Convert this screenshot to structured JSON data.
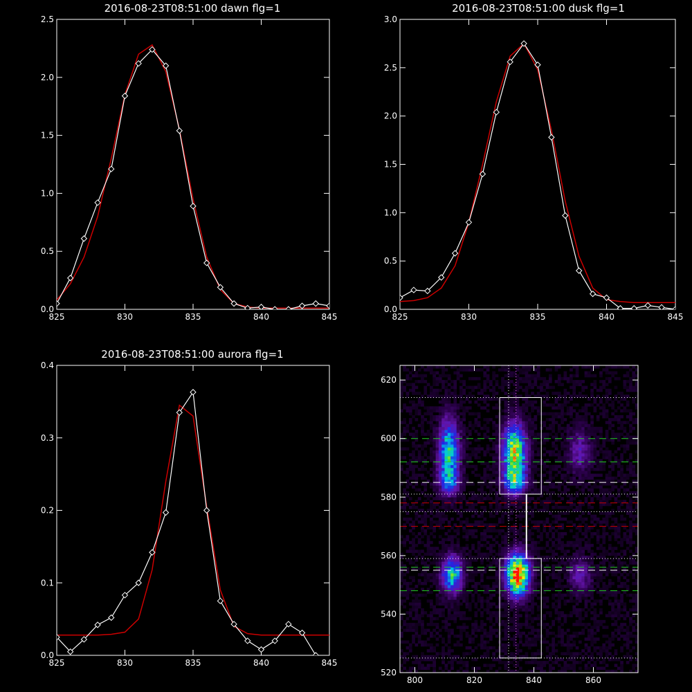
{
  "chart_data": [
    {
      "type": "line",
      "title": "2016-08-23T08:51:00 dawn flg=1",
      "xlim": [
        825,
        845
      ],
      "ylim": [
        0,
        2.5
      ],
      "xticks": [
        825,
        830,
        835,
        840,
        845
      ],
      "yticks": [
        0.0,
        0.5,
        1.0,
        1.5,
        2.0,
        2.5
      ],
      "ytick_labels": [
        "0.0",
        "0.5",
        "1.0",
        "1.5",
        "2.0",
        "2.5"
      ],
      "series": [
        {
          "color": "#ffffff",
          "markers": true,
          "x": [
            825,
            826,
            827,
            828,
            829,
            830,
            831,
            832,
            833,
            834,
            835,
            836,
            837,
            838,
            839,
            840,
            841,
            842,
            843,
            844,
            845
          ],
          "y": [
            0.05,
            0.27,
            0.61,
            0.92,
            1.21,
            1.84,
            2.12,
            2.24,
            2.1,
            1.54,
            0.89,
            0.4,
            0.19,
            0.05,
            0.01,
            0.02,
            0.0,
            0.0,
            0.03,
            0.05,
            0.03
          ]
        },
        {
          "color": "#cc0000",
          "markers": false,
          "x": [
            825,
            826,
            827,
            828,
            829,
            830,
            831,
            832,
            833,
            834,
            835,
            836,
            837,
            838,
            839,
            840,
            841,
            842,
            843,
            844,
            845
          ],
          "y": [
            0.08,
            0.22,
            0.45,
            0.8,
            1.3,
            1.85,
            2.2,
            2.28,
            2.05,
            1.55,
            0.95,
            0.45,
            0.17,
            0.05,
            0.02,
            0.01,
            0.01,
            0.01,
            0.01,
            0.01,
            0.01
          ]
        }
      ]
    },
    {
      "type": "line",
      "title": "2016-08-23T08:51:00 dusk flg=1",
      "xlim": [
        825,
        845
      ],
      "ylim": [
        0,
        3.0
      ],
      "xticks": [
        825,
        830,
        835,
        840,
        845
      ],
      "yticks": [
        0.0,
        0.5,
        1.0,
        1.5,
        2.0,
        2.5,
        3.0
      ],
      "ytick_labels": [
        "0.0",
        "0.5",
        "1.0",
        "1.5",
        "2.0",
        "2.5",
        "3.0"
      ],
      "series": [
        {
          "color": "#ffffff",
          "markers": true,
          "x": [
            825,
            826,
            827,
            828,
            829,
            830,
            831,
            832,
            833,
            834,
            835,
            836,
            837,
            838,
            839,
            840,
            841,
            842,
            843,
            844,
            845
          ],
          "y": [
            0.12,
            0.2,
            0.19,
            0.33,
            0.58,
            0.9,
            1.4,
            2.04,
            2.56,
            2.75,
            2.53,
            1.78,
            0.97,
            0.4,
            0.16,
            0.12,
            0.01,
            0.01,
            0.04,
            0.02,
            0.0
          ]
        },
        {
          "color": "#cc0000",
          "markers": false,
          "x": [
            825,
            826,
            827,
            828,
            829,
            830,
            831,
            832,
            833,
            834,
            835,
            836,
            837,
            838,
            839,
            840,
            841,
            842,
            843,
            844,
            845
          ],
          "y": [
            0.08,
            0.09,
            0.12,
            0.22,
            0.45,
            0.9,
            1.5,
            2.15,
            2.62,
            2.75,
            2.48,
            1.85,
            1.12,
            0.55,
            0.22,
            0.1,
            0.08,
            0.07,
            0.07,
            0.07,
            0.07
          ]
        }
      ]
    },
    {
      "type": "line",
      "title": "2016-08-23T08:51:00 aurora flg=1",
      "xlim": [
        825,
        845
      ],
      "ylim": [
        0,
        0.4
      ],
      "xticks": [
        825,
        830,
        835,
        840,
        845
      ],
      "yticks": [
        0.0,
        0.1,
        0.2,
        0.3,
        0.4
      ],
      "ytick_labels": [
        "0.0",
        "0.1",
        "0.2",
        "0.3",
        "0.4"
      ],
      "series": [
        {
          "color": "#ffffff",
          "markers": true,
          "x": [
            825,
            826,
            827,
            828,
            829,
            830,
            831,
            832,
            833,
            834,
            835,
            836,
            837,
            838,
            839,
            840,
            841,
            842,
            843,
            844
          ],
          "y": [
            0.025,
            0.005,
            0.022,
            0.042,
            0.052,
            0.083,
            0.1,
            0.142,
            0.197,
            0.335,
            0.363,
            0.2,
            0.075,
            0.043,
            0.02,
            0.008,
            0.02,
            0.043,
            0.031,
            0.0
          ]
        },
        {
          "color": "#cc0000",
          "markers": false,
          "x": [
            825,
            826,
            827,
            828,
            829,
            830,
            831,
            832,
            833,
            834,
            835,
            836,
            837,
            838,
            839,
            840,
            841,
            842,
            843,
            844,
            845
          ],
          "y": [
            0.028,
            0.028,
            0.028,
            0.028,
            0.029,
            0.032,
            0.05,
            0.118,
            0.24,
            0.345,
            0.33,
            0.205,
            0.09,
            0.04,
            0.03,
            0.028,
            0.028,
            0.028,
            0.028,
            0.028,
            0.028
          ]
        }
      ]
    },
    {
      "type": "heatmap",
      "xlim": [
        795,
        875
      ],
      "ylim": [
        520,
        625
      ],
      "xticks": [
        800,
        820,
        840,
        860
      ],
      "yticks": [
        520,
        540,
        560,
        580,
        600,
        620
      ],
      "blobs": [
        {
          "x": 811,
          "y": 595,
          "sx": 2.2,
          "sy": 7,
          "amp": 0.55
        },
        {
          "x": 811,
          "y": 585,
          "sx": 2.2,
          "sy": 3,
          "amp": 0.3
        },
        {
          "x": 812,
          "y": 553,
          "sx": 2.2,
          "sy": 4,
          "amp": 0.55
        },
        {
          "x": 833,
          "y": 595,
          "sx": 2.5,
          "sy": 6,
          "amp": 0.75
        },
        {
          "x": 833,
          "y": 585,
          "sx": 2.5,
          "sy": 3,
          "amp": 0.45
        },
        {
          "x": 834,
          "y": 553,
          "sx": 2.5,
          "sy": 4.5,
          "amp": 1.0
        },
        {
          "x": 855,
          "y": 595,
          "sx": 2.5,
          "sy": 5,
          "amp": 0.18
        },
        {
          "x": 855,
          "y": 553,
          "sx": 2.5,
          "sy": 4,
          "amp": 0.18
        }
      ],
      "boxes": [
        {
          "x0": 828.5,
          "x1": 842.5,
          "y0": 581,
          "y1": 614,
          "color": "#ffffff"
        },
        {
          "x0": 828.5,
          "x1": 842.5,
          "y0": 525,
          "y1": 559,
          "color": "#ffffff"
        }
      ],
      "connector": {
        "x": 837.5,
        "y0": 559,
        "y1": 581,
        "color": "#ffffff"
      },
      "hlines": [
        {
          "y": 600,
          "color": "#22cc22",
          "style": "dashed"
        },
        {
          "y": 592,
          "color": "#22cc22",
          "style": "dashed"
        },
        {
          "y": 585,
          "color": "#ffffff",
          "style": "dashed"
        },
        {
          "y": 578,
          "color": "#cc0000",
          "style": "dashed"
        },
        {
          "y": 570,
          "color": "#cc0000",
          "style": "dashed"
        },
        {
          "y": 556,
          "color": "#22cc22",
          "style": "dashed"
        },
        {
          "y": 555,
          "color": "#ffffff",
          "style": "dashed"
        },
        {
          "y": 548,
          "color": "#22cc22",
          "style": "dashed"
        },
        {
          "y": 614,
          "color": "#ffffff",
          "style": "dotted"
        },
        {
          "y": 581,
          "color": "#ffffff",
          "style": "dotted"
        },
        {
          "y": 575,
          "color": "#ffffff",
          "style": "dotted"
        },
        {
          "y": 559,
          "color": "#ffffff",
          "style": "dotted"
        },
        {
          "y": 525,
          "color": "#ffffff",
          "style": "dotted"
        }
      ],
      "vlines": [
        {
          "x": 831.5,
          "color": "#ffffff",
          "style": "dotted"
        },
        {
          "x": 834,
          "color": "#ff66ff",
          "style": "dotted"
        }
      ]
    }
  ]
}
